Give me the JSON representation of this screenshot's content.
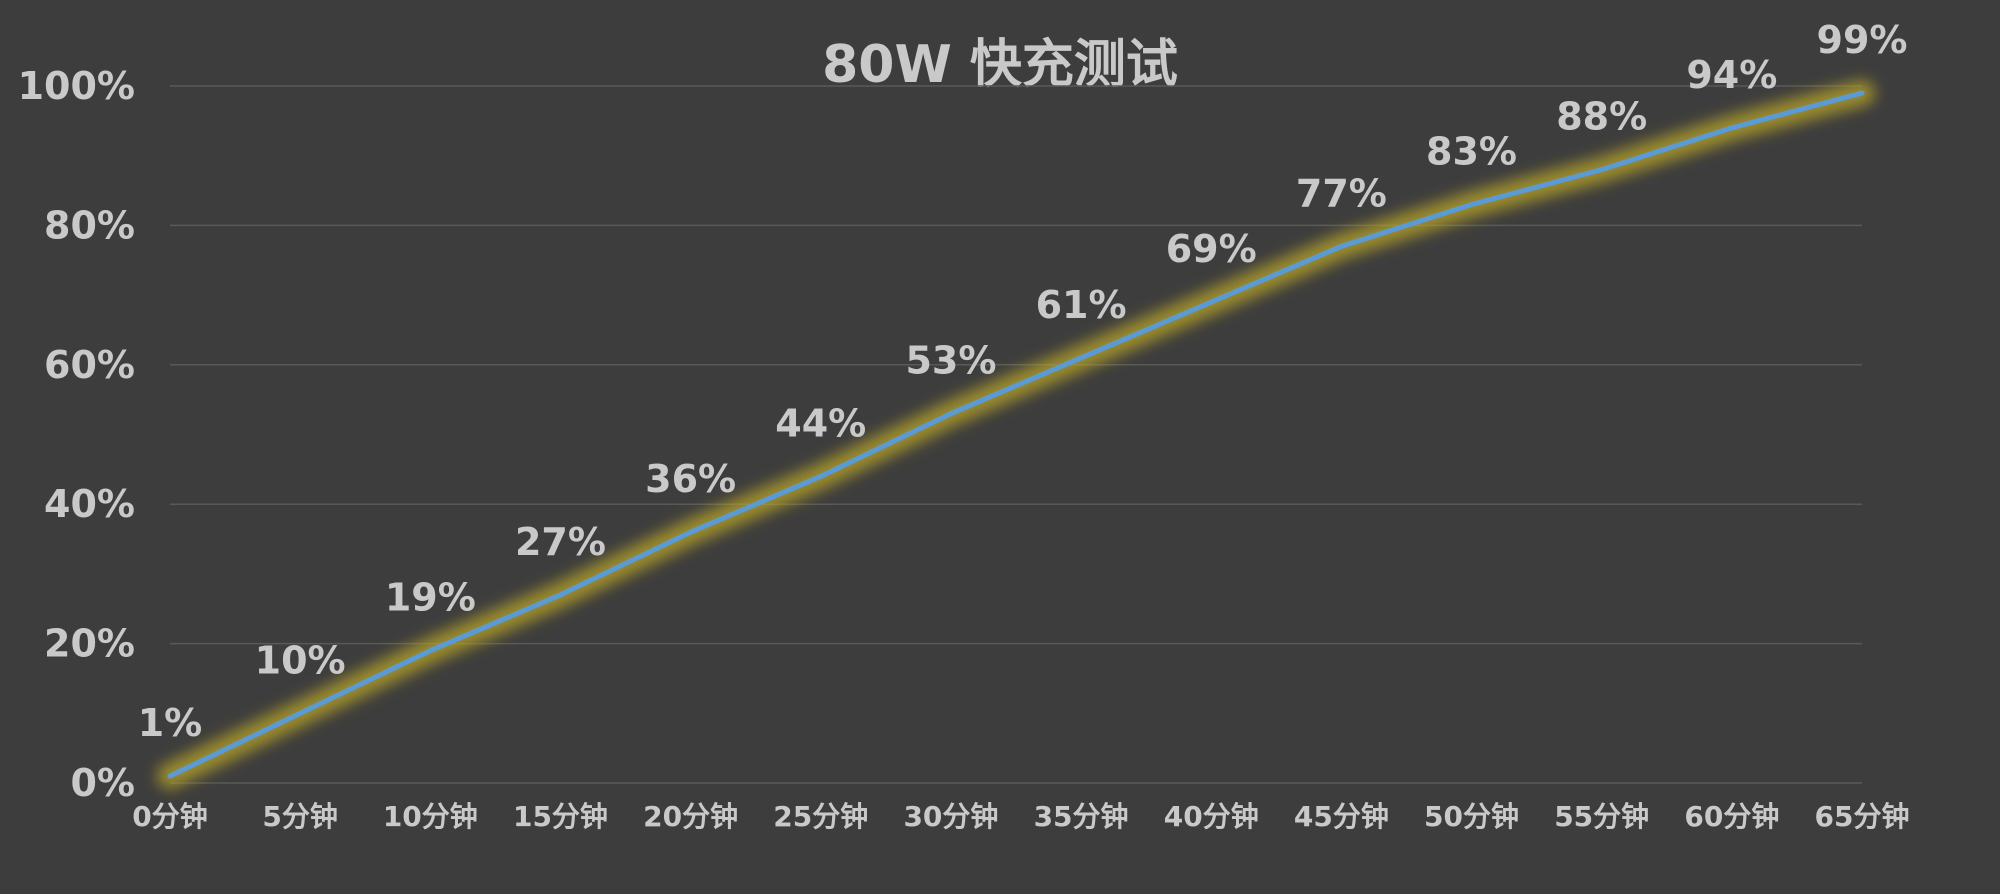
{
  "chart_data": {
    "type": "line",
    "title": "80W 快充测试",
    "xlabel": "",
    "ylabel": "",
    "categories": [
      "0分钟",
      "5分钟",
      "10分钟",
      "15分钟",
      "20分钟",
      "25分钟",
      "30分钟",
      "35分钟",
      "40分钟",
      "45分钟",
      "50分钟",
      "55分钟",
      "60分钟",
      "65分钟"
    ],
    "series": [
      {
        "values": [
          1,
          10,
          19,
          27,
          36,
          44,
          53,
          61,
          69,
          77,
          83,
          88,
          94,
          99
        ],
        "data_labels": [
          "1%",
          "10%",
          "19%",
          "27%",
          "36%",
          "44%",
          "53%",
          "61%",
          "69%",
          "77%",
          "83%",
          "88%",
          "94%",
          "99%"
        ]
      }
    ],
    "yticks": [
      0,
      20,
      40,
      60,
      80,
      100
    ],
    "ytick_labels": [
      "0%",
      "20%",
      "40%",
      "60%",
      "80%",
      "100%"
    ],
    "ylim": [
      0,
      100
    ],
    "grid": true,
    "legend": "none",
    "colors": {
      "background": "#3d3d3d",
      "line": "#5b9bd5",
      "glow": "#b8a428",
      "text": "#c9c9c9",
      "grid": "#595959"
    }
  }
}
